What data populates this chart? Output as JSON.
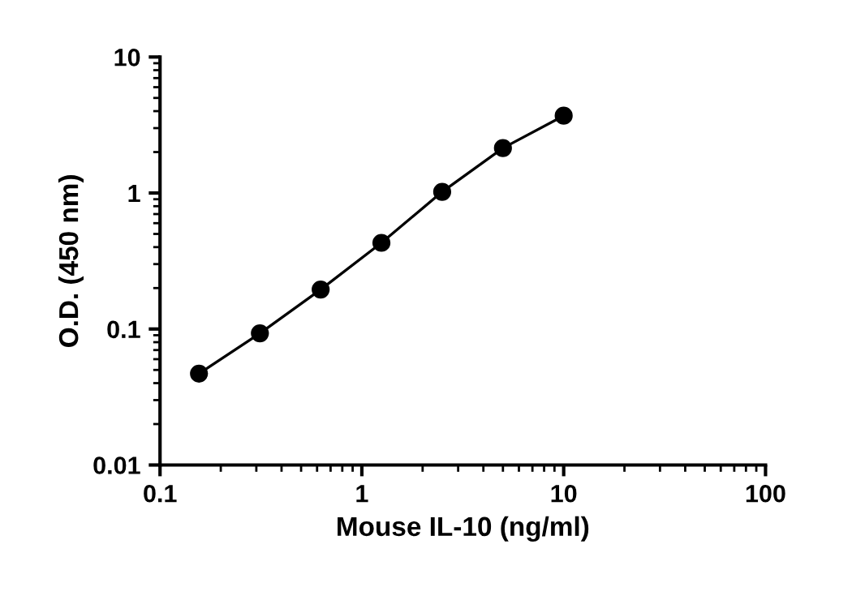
{
  "chart_data": {
    "type": "line",
    "xlabel": "Mouse IL-10 (ng/ml)",
    "ylabel": "O.D. (450 nm)",
    "log": "xy",
    "grid": false,
    "legend": false,
    "x": [
      0.156,
      0.3125,
      0.625,
      1.25,
      2.5,
      5,
      10
    ],
    "series": [
      {
        "color": "#000000",
        "marker": "circle",
        "line_style": "solid",
        "values": [
          0.047,
          0.093,
          0.195,
          0.43,
          1.02,
          2.14,
          3.7
        ]
      }
    ],
    "xlim": [
      0.1,
      100
    ],
    "xticks": [
      0.1,
      1,
      10,
      100
    ],
    "ylim": [
      0.01,
      10
    ],
    "yticks": [
      0.01,
      0.1,
      1,
      10
    ]
  }
}
